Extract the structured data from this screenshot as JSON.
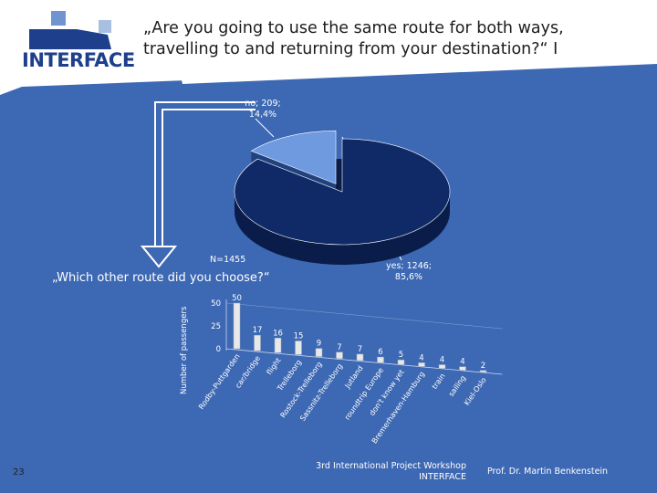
{
  "slide": {
    "title": "„Are you going to use the same route for both ways, travelling to and returning from your destination?“ I",
    "subtitle": "„Which other route did you choose?“",
    "logo_text": "INTERFACE",
    "slide_number": "23",
    "footer_workshop_line1": "3rd International Project Workshop",
    "footer_workshop_line2": "INTERFACE",
    "footer_author": "Prof. Dr. Martin Benkenstein"
  },
  "colors": {
    "background_panel": "#3d68b3",
    "pie_yes": "#0f2a66",
    "pie_no": "#6f9ae0",
    "bar_fill": "#e8e8e8",
    "logo_blue": "#1e3f8c",
    "logo_light": "#6f94cf"
  },
  "chart_data": [
    {
      "type": "pie",
      "title": "",
      "n_label": "N=1455",
      "slices": [
        {
          "label": "no",
          "value": 209,
          "percent_label": "14,4%",
          "text": "no; 209;",
          "color": "#6f9ae0"
        },
        {
          "label": "yes",
          "value": 1246,
          "percent_label": "85,6%",
          "text": "yes; 1246;",
          "color": "#0f2a66"
        }
      ]
    },
    {
      "type": "bar",
      "title": "„Which other route did you choose?“",
      "ylabel": "Number of passengers",
      "ylim": [
        0,
        50
      ],
      "yticks": [
        0,
        25,
        50
      ],
      "categories": [
        "Rodby-Puttgarden",
        "car/bridge",
        "flight",
        "Trelleborg",
        "Rostock-Trelleborg",
        "Sassnitz-Trelleborg",
        "Jutland",
        "roundtrip Europe",
        "don't know yet",
        "Bremerhaven-Hamburg",
        "train",
        "sailing",
        "Kiel-Oslo"
      ],
      "values": [
        50,
        17,
        16,
        15,
        9,
        7,
        7,
        6,
        5,
        4,
        4,
        4,
        2
      ]
    }
  ]
}
